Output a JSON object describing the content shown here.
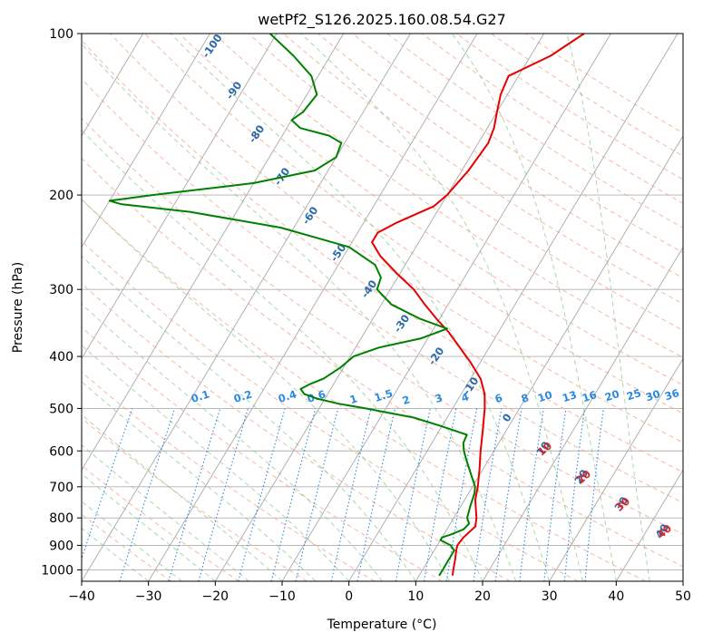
{
  "chart_data": {
    "type": "line",
    "title": "wetPf2_S126.2025.160.08.54.G27",
    "xlabel": "Temperature (°C)",
    "ylabel": "Pressure (hPa)",
    "xlim": [
      -40,
      50
    ],
    "ylim": [
      1050,
      100
    ],
    "y_scale": "log",
    "x_ticks": [
      "−40",
      "−30",
      "−20",
      "−10",
      "0",
      "10",
      "20",
      "30",
      "40",
      "50"
    ],
    "y_ticks": [
      "1000",
      "900",
      "800",
      "700",
      "600",
      "500",
      "400",
      "300",
      "200",
      "100"
    ],
    "grid": true,
    "series": [
      {
        "color": "#e60000",
        "p": [
          1025,
          1000,
          960,
          920,
          900,
          870,
          850,
          830,
          800,
          770,
          740,
          700,
          650,
          600,
          550,
          500,
          470,
          440,
          410,
          380,
          360,
          340,
          320,
          300,
          280,
          260,
          245,
          235,
          225,
          210,
          200,
          180,
          160,
          150,
          140,
          130,
          120,
          110,
          100
        ],
        "t": [
          15.0,
          14.6,
          14.0,
          13.3,
          13.0,
          13.2,
          13.6,
          14.0,
          13.4,
          12.5,
          11.6,
          10.8,
          9.5,
          8.0,
          6.5,
          4.8,
          3.5,
          1.5,
          -1.5,
          -5.0,
          -7.5,
          -10.5,
          -13.5,
          -16.5,
          -20.5,
          -24.5,
          -27.0,
          -27.0,
          -25.0,
          -21.0,
          -20.0,
          -19.0,
          -18.5,
          -19.0,
          -20.0,
          -21.0,
          -21.5,
          -17.0,
          -14.0
        ]
      },
      {
        "color": "#008000",
        "p": [
          1025,
          1000,
          960,
          920,
          900,
          880,
          870,
          860,
          840,
          820,
          800,
          760,
          720,
          700,
          660,
          620,
          600,
          580,
          560,
          540,
          520,
          510,
          500,
          490,
          480,
          470,
          460,
          450,
          440,
          420,
          400,
          385,
          370,
          355,
          340,
          320,
          300,
          285,
          270,
          250,
          230,
          215,
          208,
          205,
          200,
          190,
          180,
          170,
          160,
          155,
          150,
          145,
          140,
          130,
          120,
          110,
          100
        ],
        "t": [
          13.0,
          13.0,
          13.0,
          13.0,
          12.0,
          10.0,
          10.0,
          11.0,
          12.5,
          12.8,
          12.0,
          11.4,
          10.9,
          10.4,
          8.5,
          6.5,
          5.5,
          4.7,
          4.5,
          0.0,
          -5.0,
          -9.0,
          -13.0,
          -17.5,
          -21.0,
          -23.5,
          -24.5,
          -23.5,
          -22.0,
          -20.5,
          -19.5,
          -16.5,
          -11.0,
          -8.0,
          -13.0,
          -18.5,
          -22.0,
          -22.5,
          -24.5,
          -30.0,
          -42.0,
          -57.0,
          -68.0,
          -70.0,
          -64.0,
          -50.0,
          -42.0,
          -40.0,
          -40.5,
          -43.0,
          -48.0,
          -50.0,
          -49.0,
          -48.5,
          -51.0,
          -55.5,
          -61.0
        ]
      }
    ],
    "dry_adiabat_labels": [
      "-100",
      "-90",
      "-80",
      "-70",
      "-60",
      "-50",
      "-40",
      "-30",
      "-20",
      "-10",
      "0",
      "10",
      "20",
      "30",
      "40"
    ],
    "mixing_ratio_labels": [
      "0.1",
      "0.2",
      "0.4",
      "0.6",
      "1",
      "1.5",
      "2",
      "3",
      "4",
      "6",
      "8",
      "10",
      "13",
      "16",
      "20",
      "25",
      "30",
      "36"
    ],
    "moist_adiabat_labels": [
      "10",
      "20",
      "30",
      "40"
    ],
    "colors": {
      "temperature": "#e60000",
      "dewpoint": "#008000",
      "isobar": "#b0b0b0",
      "isotherm": "#a8a8a8",
      "dry_adiabat": "#f4a58a",
      "moist_adiabat": "#7fc07f",
      "mixing_ratio": "#2a8ae0",
      "dry_label": "#2a6aa8",
      "moist_label_cold": "#666666",
      "moist_label_warm": "#d42a2a"
    }
  }
}
